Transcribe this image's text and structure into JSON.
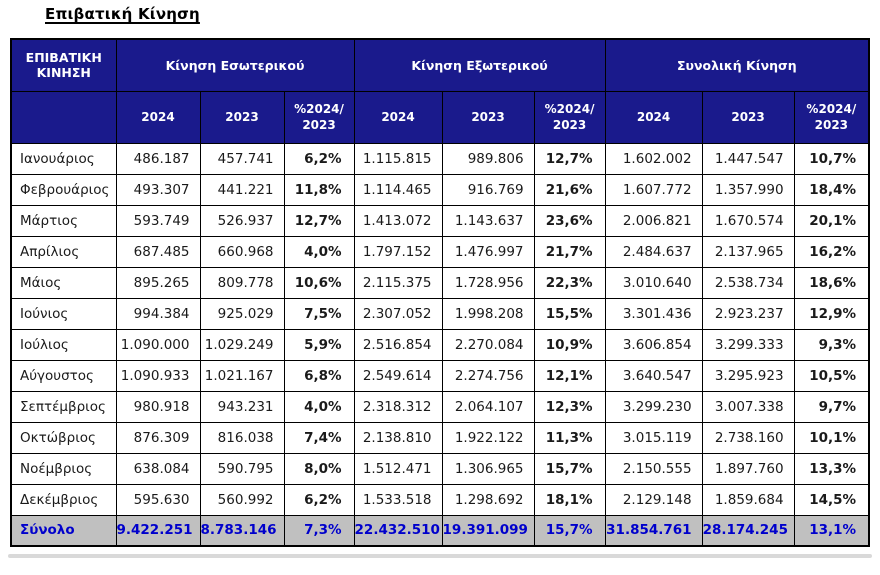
{
  "page_title": "Επιβατική Κίνηση",
  "colors": {
    "header_bg": "#1a1a8c",
    "header_text": "#ffffff",
    "border": "#000000",
    "total_bg": "#c0c0c0",
    "total_text": "#0000cc",
    "data_text": "#1a1a1a",
    "bottom_line": "#d9d9d9"
  },
  "table": {
    "corner_header": "ΕΠΙΒΑΤΙΚΗ ΚΙΝΗΣΗ",
    "groups": [
      {
        "label": "Κίνηση Εσωτερικού"
      },
      {
        "label": "Κίνηση Εξωτερικού"
      },
      {
        "label": "Συνολική Κίνηση"
      }
    ],
    "sub_headers": [
      "2024",
      "2023",
      "%2024/ 2023"
    ],
    "rows": [
      {
        "month": "Ιανουάριος",
        "cells": [
          "486.187",
          "457.741",
          "6,2%",
          "1.115.815",
          "989.806",
          "12,7%",
          "1.602.002",
          "1.447.547",
          "10,7%"
        ]
      },
      {
        "month": "Φεβρουάριος",
        "cells": [
          "493.307",
          "441.221",
          "11,8%",
          "1.114.465",
          "916.769",
          "21,6%",
          "1.607.772",
          "1.357.990",
          "18,4%"
        ]
      },
      {
        "month": "Μάρτιος",
        "cells": [
          "593.749",
          "526.937",
          "12,7%",
          "1.413.072",
          "1.143.637",
          "23,6%",
          "2.006.821",
          "1.670.574",
          "20,1%"
        ]
      },
      {
        "month": "Απρίλιος",
        "cells": [
          "687.485",
          "660.968",
          "4,0%",
          "1.797.152",
          "1.476.997",
          "21,7%",
          "2.484.637",
          "2.137.965",
          "16,2%"
        ]
      },
      {
        "month": "Μάιος",
        "cells": [
          "895.265",
          "809.778",
          "10,6%",
          "2.115.375",
          "1.728.956",
          "22,3%",
          "3.010.640",
          "2.538.734",
          "18,6%"
        ]
      },
      {
        "month": "Ιούνιος",
        "cells": [
          "994.384",
          "925.029",
          "7,5%",
          "2.307.052",
          "1.998.208",
          "15,5%",
          "3.301.436",
          "2.923.237",
          "12,9%"
        ]
      },
      {
        "month": "Ιούλιος",
        "cells": [
          "1.090.000",
          "1.029.249",
          "5,9%",
          "2.516.854",
          "2.270.084",
          "10,9%",
          "3.606.854",
          "3.299.333",
          "9,3%"
        ]
      },
      {
        "month": "Αύγουστος",
        "cells": [
          "1.090.933",
          "1.021.167",
          "6,8%",
          "2.549.614",
          "2.274.756",
          "12,1%",
          "3.640.547",
          "3.295.923",
          "10,5%"
        ]
      },
      {
        "month": "Σεπτέμβριος",
        "cells": [
          "980.918",
          "943.231",
          "4,0%",
          "2.318.312",
          "2.064.107",
          "12,3%",
          "3.299.230",
          "3.007.338",
          "9,7%"
        ]
      },
      {
        "month": "Οκτώβριος",
        "cells": [
          "876.309",
          "816.038",
          "7,4%",
          "2.138.810",
          "1.922.122",
          "11,3%",
          "3.015.119",
          "2.738.160",
          "10,1%"
        ]
      },
      {
        "month": "Νοέμβριος",
        "cells": [
          "638.084",
          "590.795",
          "8,0%",
          "1.512.471",
          "1.306.965",
          "15,7%",
          "2.150.555",
          "1.897.760",
          "13,3%"
        ]
      },
      {
        "month": "Δεκέμβριος",
        "cells": [
          "595.630",
          "560.992",
          "6,2%",
          "1.533.518",
          "1.298.692",
          "18,1%",
          "2.129.148",
          "1.859.684",
          "14,5%"
        ]
      }
    ],
    "total": {
      "label": "Σύνολο",
      "cells": [
        "9.422.251",
        "8.783.146",
        "7,3%",
        "22.432.510",
        "19.391.099",
        "15,7%",
        "31.854.761",
        "28.174.245",
        "13,1%"
      ]
    }
  }
}
